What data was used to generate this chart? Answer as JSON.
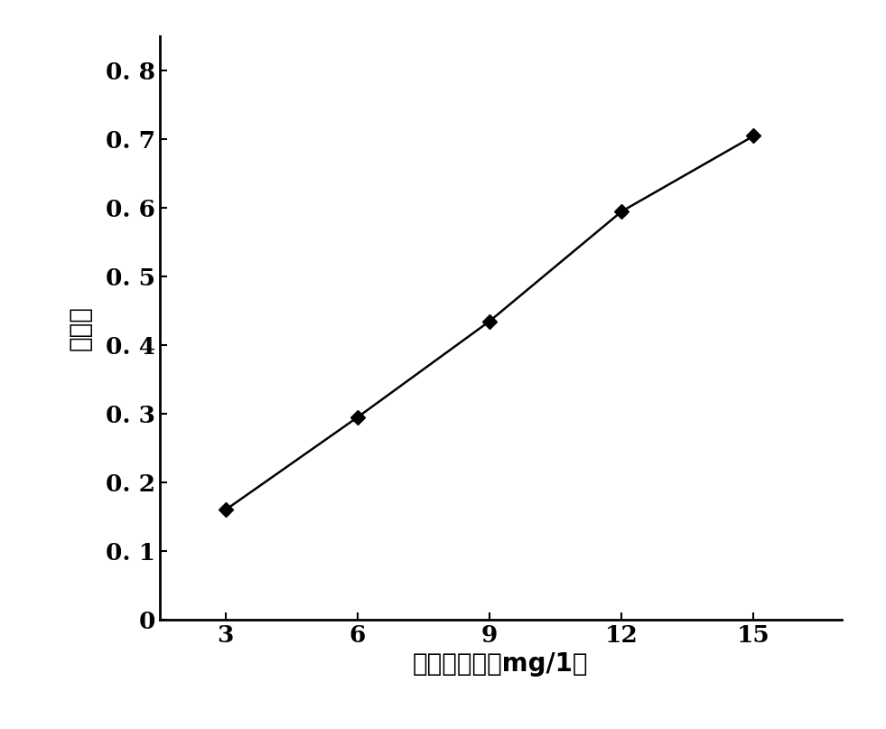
{
  "x": [
    3,
    6,
    9,
    12,
    15
  ],
  "y": [
    0.16,
    0.295,
    0.435,
    0.595,
    0.705
  ],
  "xlabel": "标准液浓度（mg/1）",
  "ylabel": "吸光度",
  "xlim": [
    1.5,
    17
  ],
  "ylim": [
    0,
    0.85
  ],
  "xticks": [
    3,
    6,
    9,
    12,
    15
  ],
  "yticks": [
    0,
    0.1,
    0.2,
    0.3,
    0.4,
    0.5,
    0.6,
    0.7,
    0.8
  ],
  "ytick_labels": [
    "0",
    "0. 1",
    "0. 2",
    "0. 3",
    "0. 4",
    "0. 5",
    "0. 6",
    "0. 7",
    "0. 8"
  ],
  "line_color": "#000000",
  "marker": "D",
  "marker_size": 8,
  "marker_color": "#000000",
  "line_width": 1.8,
  "background_color": "#ffffff",
  "xlabel_fontsize": 20,
  "ylabel_fontsize": 20,
  "tick_fontsize": 19,
  "spine_linewidth": 2.0
}
